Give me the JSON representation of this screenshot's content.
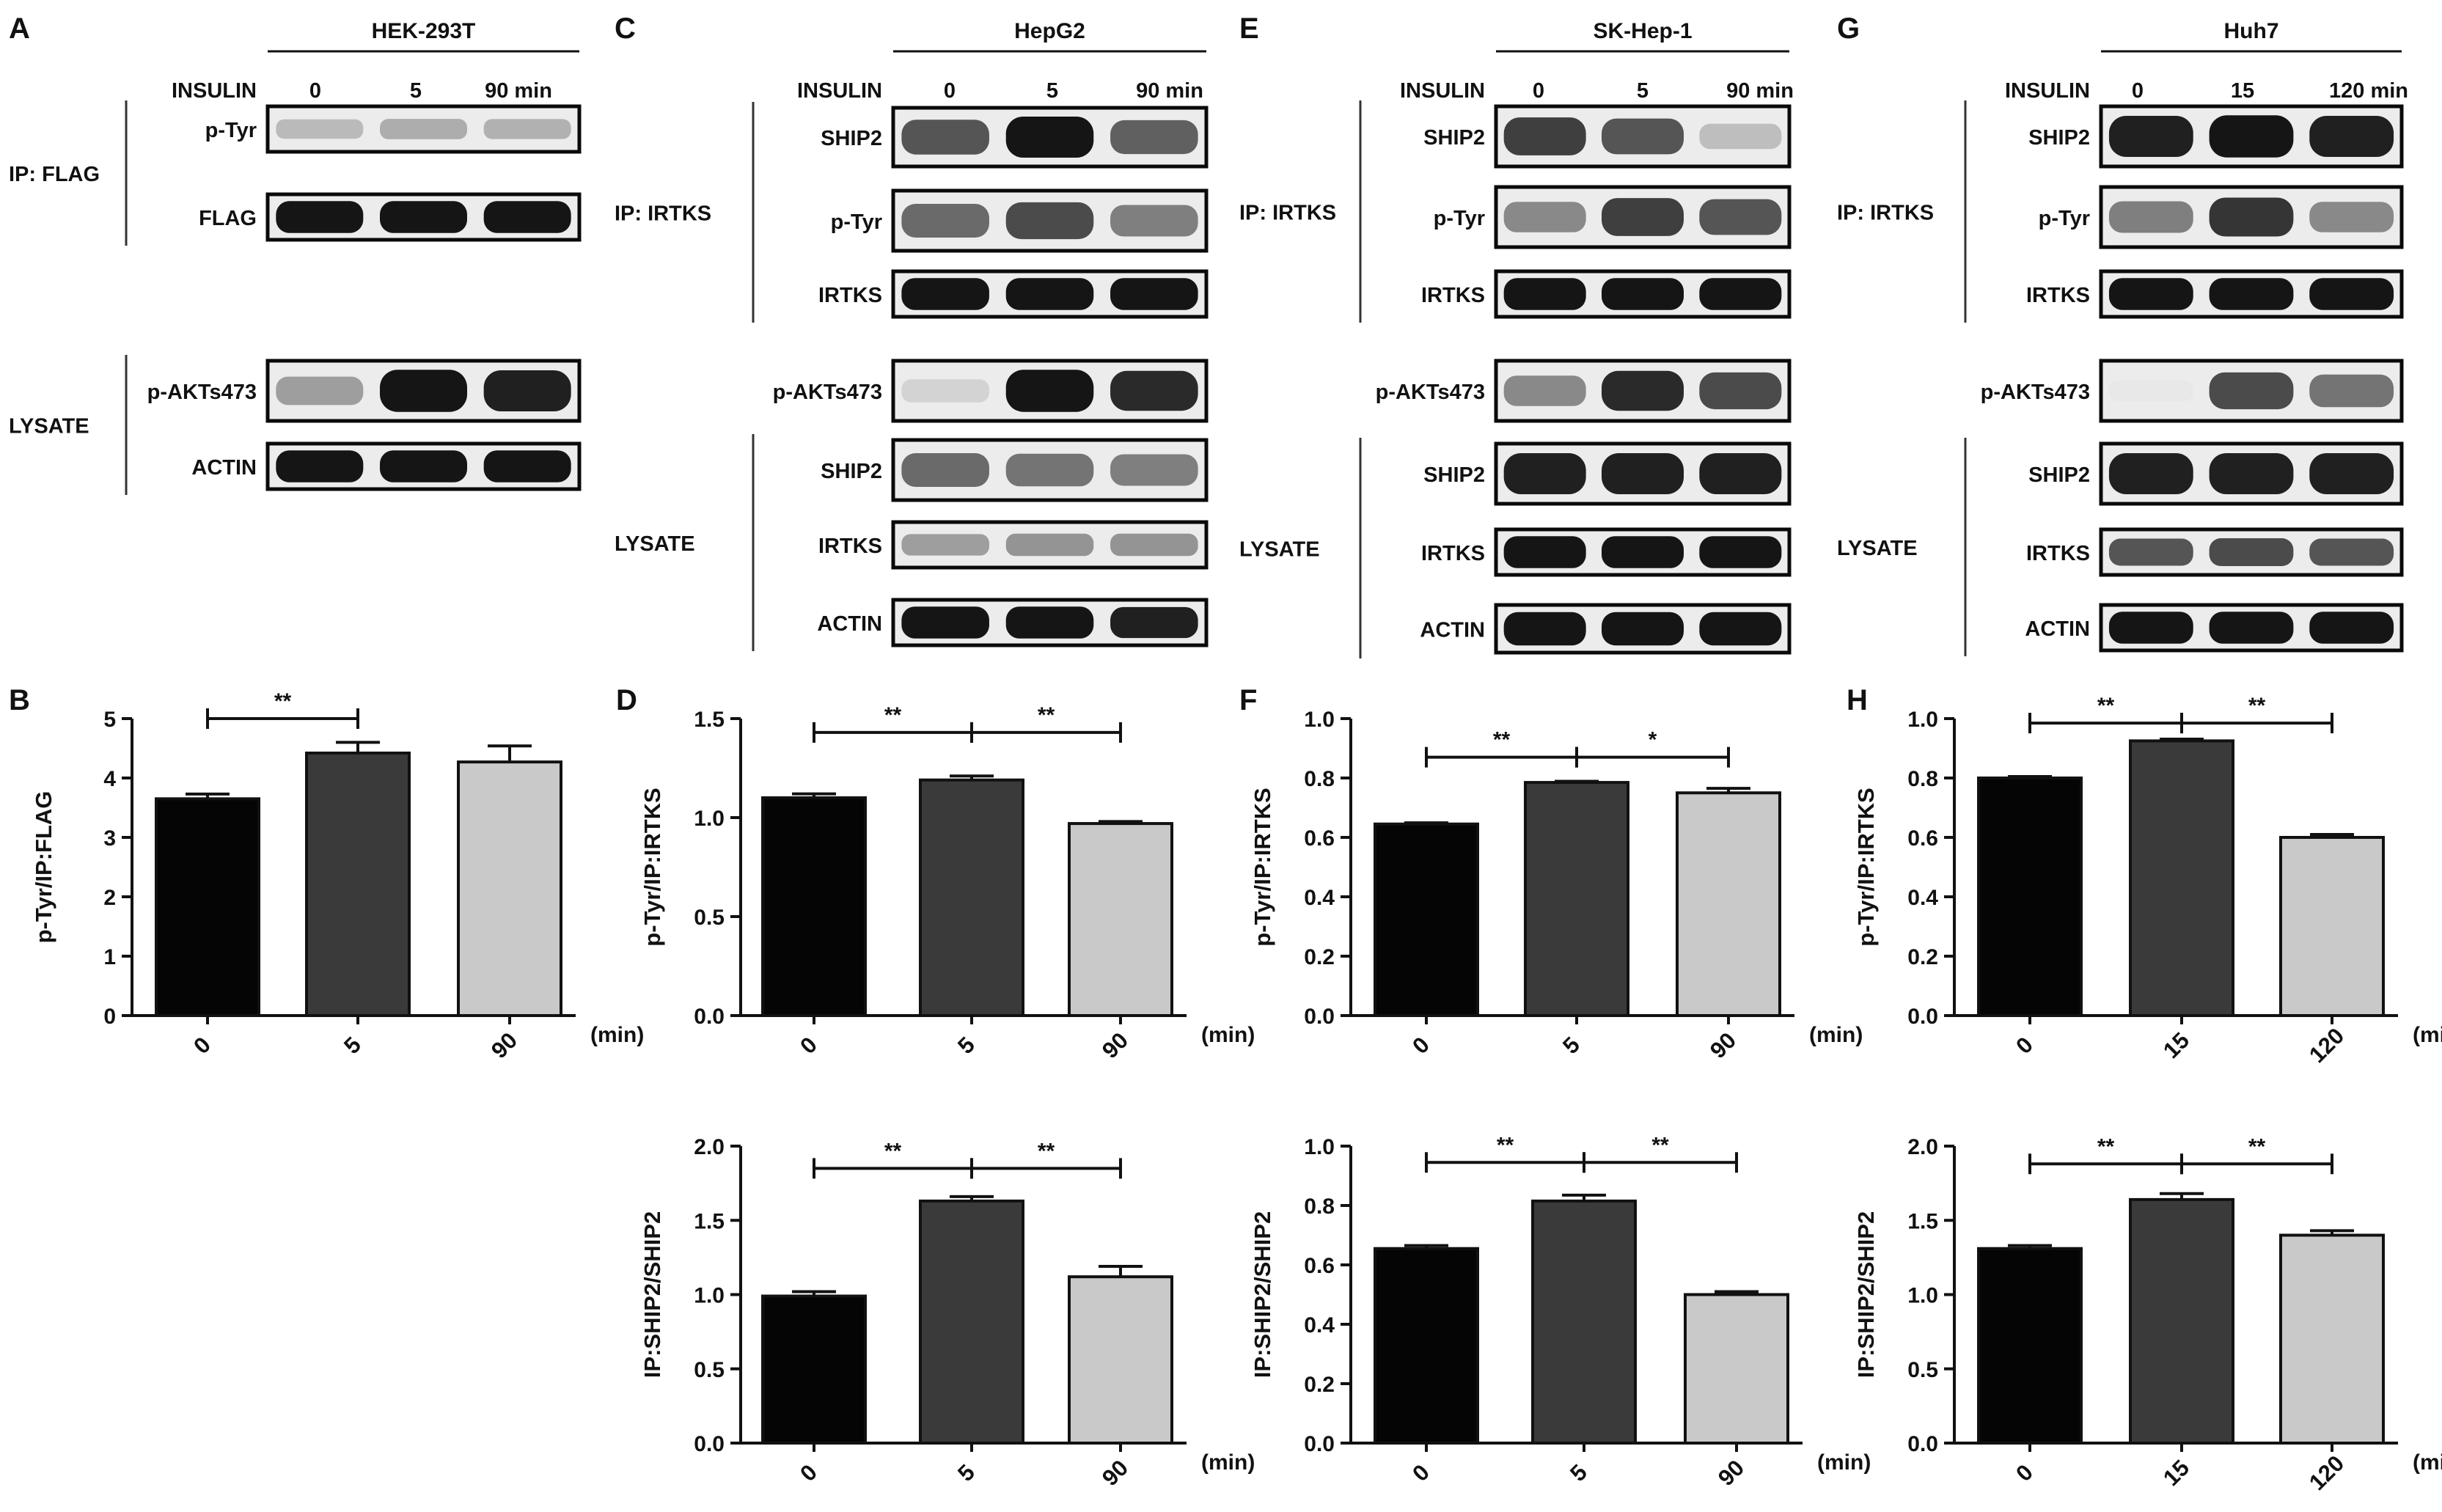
{
  "figure": {
    "panels": [
      {
        "letter": "A",
        "cell_line": "HEK-293T",
        "treatment_label": "INSULIN",
        "lane_labels": [
          "0",
          "5",
          "90 min"
        ],
        "groups": [
          {
            "label": "IP: FLAG",
            "rows": [
              0,
              1
            ]
          },
          {
            "label": "LYSATE",
            "rows": [
              2,
              3
            ]
          }
        ],
        "blots": [
          {
            "label": "p-Tyr",
            "bands": [
              0.22,
              0.28,
              0.26
            ]
          },
          {
            "label": "FLAG",
            "bands": [
              1.0,
              1.0,
              1.0
            ]
          },
          {
            "label": "p-AKTs473",
            "bands": [
              0.35,
              1.0,
              0.95
            ]
          },
          {
            "label": "ACTIN",
            "bands": [
              1.0,
              1.0,
              1.0
            ]
          }
        ]
      },
      {
        "letter": "C",
        "cell_line": "HepG2",
        "treatment_label": "INSULIN",
        "lane_labels": [
          "0",
          "5",
          "90 min"
        ],
        "groups": [
          {
            "label": "IP: IRTKS",
            "rows": [
              0,
              1,
              2
            ]
          },
          {
            "label": "LYSATE",
            "rows": [
              4,
              5,
              6
            ]
          }
        ],
        "blots": [
          {
            "label": "SHIP2",
            "bands": [
              0.7,
              1.0,
              0.65
            ]
          },
          {
            "label": "p-Tyr",
            "bands": [
              0.6,
              0.75,
              0.5
            ]
          },
          {
            "label": "IRTKS",
            "bands": [
              1.0,
              1.0,
              1.0
            ]
          },
          {
            "label": "p-AKTs473",
            "bands": [
              0.1,
              1.0,
              0.9
            ]
          },
          {
            "label": "SHIP2",
            "bands": [
              0.6,
              0.55,
              0.5
            ]
          },
          {
            "label": "IRTKS",
            "bands": [
              0.35,
              0.4,
              0.4
            ]
          },
          {
            "label": "ACTIN",
            "bands": [
              1.0,
              1.0,
              0.95
            ]
          }
        ]
      },
      {
        "letter": "E",
        "cell_line": "SK-Hep-1",
        "treatment_label": "INSULIN",
        "lane_labels": [
          "0",
          "5",
          "90 min"
        ],
        "groups": [
          {
            "label": "IP: IRTKS",
            "rows": [
              0,
              1,
              2
            ]
          },
          {
            "label": "LYSATE",
            "rows": [
              4,
              5,
              6
            ]
          }
        ],
        "blots": [
          {
            "label": "SHIP2",
            "bands": [
              0.8,
              0.7,
              0.2
            ]
          },
          {
            "label": "p-Tyr",
            "bands": [
              0.45,
              0.8,
              0.7
            ]
          },
          {
            "label": "IRTKS",
            "bands": [
              1.0,
              1.0,
              1.0
            ]
          },
          {
            "label": "p-AKTs473",
            "bands": [
              0.45,
              0.9,
              0.75
            ]
          },
          {
            "label": "SHIP2",
            "bands": [
              0.95,
              0.95,
              0.95
            ]
          },
          {
            "label": "IRTKS",
            "bands": [
              1.0,
              1.0,
              1.0
            ]
          },
          {
            "label": "ACTIN",
            "bands": [
              1.0,
              1.0,
              1.0
            ]
          }
        ]
      },
      {
        "letter": "G",
        "cell_line": "Huh7",
        "treatment_label": "INSULIN",
        "lane_labels": [
          "0",
          "15",
          "120 min"
        ],
        "groups": [
          {
            "label": "IP: IRTKS",
            "rows": [
              0,
              1,
              2
            ]
          },
          {
            "label": "LYSATE",
            "rows": [
              4,
              5,
              6
            ]
          }
        ],
        "blots": [
          {
            "label": "SHIP2",
            "bands": [
              0.95,
              1.0,
              0.95
            ]
          },
          {
            "label": "p-Tyr",
            "bands": [
              0.5,
              0.85,
              0.45
            ]
          },
          {
            "label": "IRTKS",
            "bands": [
              1.0,
              1.0,
              1.0
            ]
          },
          {
            "label": "p-AKTs473",
            "bands": [
              0.0,
              0.75,
              0.55
            ]
          },
          {
            "label": "SHIP2",
            "bands": [
              0.95,
              0.95,
              0.95
            ]
          },
          {
            "label": "IRTKS",
            "bands": [
              0.7,
              0.75,
              0.7
            ]
          },
          {
            "label": "ACTIN",
            "bands": [
              1.0,
              1.0,
              1.0
            ]
          }
        ]
      }
    ]
  },
  "colors": {
    "bar_0": "#050505",
    "bar_1": "#3a3a3a",
    "bar_2": "#c9c9c9"
  },
  "chart_data": [
    {
      "panel": "B",
      "type": "bar",
      "categories": [
        "0",
        "5",
        "90"
      ],
      "xunit": "(min)",
      "ylabel": "p-Tyr/IP:FLAG",
      "ylim": [
        0,
        5
      ],
      "yticks": [
        "0",
        "1",
        "2",
        "3",
        "4",
        "5"
      ],
      "values": [
        3.65,
        4.42,
        4.27
      ],
      "errors": [
        0.08,
        0.18,
        0.27
      ],
      "significance": [
        {
          "from": 0,
          "to": 1,
          "label": "**",
          "level": 5.0
        }
      ]
    },
    {
      "panel": "D",
      "type": "bar",
      "categories": [
        "0",
        "5",
        "90"
      ],
      "xunit": "(min)",
      "ylabel": "p-Tyr/IP:IRTKS",
      "ylim": [
        0,
        1.5
      ],
      "yticks": [
        "0.0",
        "0.5",
        "1.0",
        "1.5"
      ],
      "values": [
        1.1,
        1.19,
        0.97
      ],
      "errors": [
        0.02,
        0.02,
        0.01
      ],
      "significance": [
        {
          "from": 0,
          "to": 1,
          "label": "**",
          "level": 1.43
        },
        {
          "from": 1,
          "to": 2,
          "label": "**",
          "level": 1.43
        }
      ]
    },
    {
      "panel": "D",
      "type": "bar",
      "categories": [
        "0",
        "5",
        "90"
      ],
      "xunit": "(min)",
      "ylabel": "IP:SHIP2/SHIP2",
      "ylim": [
        0,
        2.0
      ],
      "yticks": [
        "0.0",
        "0.5",
        "1.0",
        "1.5",
        "2.0"
      ],
      "values": [
        0.99,
        1.63,
        1.12
      ],
      "errors": [
        0.03,
        0.03,
        0.07
      ],
      "significance": [
        {
          "from": 0,
          "to": 1,
          "label": "**",
          "level": 1.85
        },
        {
          "from": 1,
          "to": 2,
          "label": "**",
          "level": 1.85
        }
      ]
    },
    {
      "panel": "F",
      "type": "bar",
      "categories": [
        "0",
        "5",
        "90"
      ],
      "xunit": "(min)",
      "ylabel": "p-Tyr/IP:IRTKS",
      "ylim": [
        0,
        1.0
      ],
      "yticks": [
        "0.0",
        "0.2",
        "0.4",
        "0.6",
        "0.8",
        "1.0"
      ],
      "values": [
        0.645,
        0.785,
        0.75
      ],
      "errors": [
        0.004,
        0.004,
        0.015
      ],
      "significance": [
        {
          "from": 0,
          "to": 1,
          "label": "**",
          "level": 0.87
        },
        {
          "from": 1,
          "to": 2,
          "label": "*",
          "level": 0.87
        }
      ]
    },
    {
      "panel": "F",
      "type": "bar",
      "categories": [
        "0",
        "5",
        "90"
      ],
      "xunit": "(min)",
      "ylabel": "IP:SHIP2/SHIP2",
      "ylim": [
        0,
        1.0
      ],
      "yticks": [
        "0.0",
        "0.2",
        "0.4",
        "0.6",
        "0.8",
        "1.0"
      ],
      "values": [
        0.655,
        0.815,
        0.5
      ],
      "errors": [
        0.01,
        0.02,
        0.01
      ],
      "significance": [
        {
          "from": 0,
          "to": 1,
          "label": "**",
          "level": 0.945
        },
        {
          "from": 1,
          "to": 2,
          "label": "**",
          "level": 0.945
        }
      ]
    },
    {
      "panel": "H",
      "type": "bar",
      "categories": [
        "0",
        "15",
        "120"
      ],
      "xunit": "(min)",
      "ylabel": "p-Tyr/IP:IRTKS",
      "ylim": [
        0,
        1.0
      ],
      "yticks": [
        "0.0",
        "0.2",
        "0.4",
        "0.6",
        "0.8",
        "1.0"
      ],
      "values": [
        0.8,
        0.925,
        0.6
      ],
      "errors": [
        0.005,
        0.006,
        0.01
      ],
      "significance": [
        {
          "from": 0,
          "to": 1,
          "label": "**",
          "level": 0.985
        },
        {
          "from": 1,
          "to": 2,
          "label": "**",
          "level": 0.985
        }
      ]
    },
    {
      "panel": "H",
      "type": "bar",
      "categories": [
        "0",
        "15",
        "120"
      ],
      "xunit": "(min)",
      "ylabel": "IP:SHIP2/SHIP2",
      "ylim": [
        0,
        2.0
      ],
      "yticks": [
        "0.0",
        "0.5",
        "1.0",
        "1.5",
        "2.0"
      ],
      "values": [
        1.31,
        1.64,
        1.4
      ],
      "errors": [
        0.02,
        0.04,
        0.03
      ],
      "significance": [
        {
          "from": 0,
          "to": 1,
          "label": "**",
          "level": 1.88
        },
        {
          "from": 1,
          "to": 2,
          "label": "**",
          "level": 1.88
        }
      ]
    }
  ]
}
